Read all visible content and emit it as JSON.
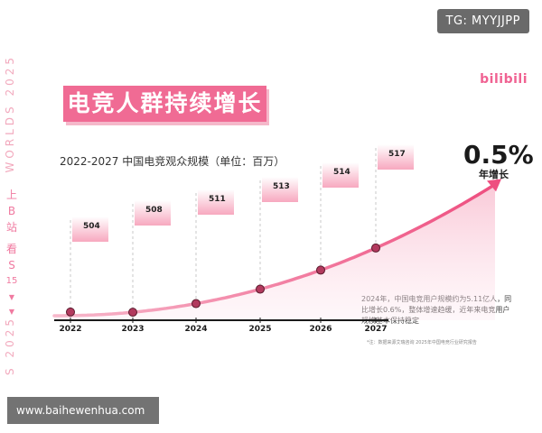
{
  "watermark_tg": "TG: MYYJJPP",
  "watermark_site": "www.baihewenhua.com",
  "logo": "bilibili",
  "side_text_top": "WORLDS 2025",
  "side_text_bottom": "S 2025",
  "side_cjk": [
    "上",
    "B",
    "站",
    "看",
    "S",
    "15"
  ],
  "headline": "电竞人群持续增长",
  "growth_rate": "0.5%",
  "growth_label": "年增长",
  "note": "2024年，中国电竞用户规模约为5.11亿人，同比增长0.6%，整体增速趋缓，近年来电竞用户规模基本保持稳定",
  "source": "*注：数据来源艾瑞咨询        2025年中国电竞行业研究报告",
  "colors": {
    "accent": "#f06b94",
    "accent_light": "#f9c3d3",
    "dot": "#b23a5e"
  },
  "chart_data": {
    "type": "line",
    "title": "2022-2027 中国电竞观众规模（单位：百万）",
    "categories": [
      "2022",
      "2023",
      "2024",
      "2025",
      "2026",
      "2027"
    ],
    "values": [
      504,
      508,
      511,
      513,
      514,
      517
    ],
    "data_labels": [
      "504",
      "508",
      "511",
      "513",
      "514",
      "517"
    ]
  }
}
